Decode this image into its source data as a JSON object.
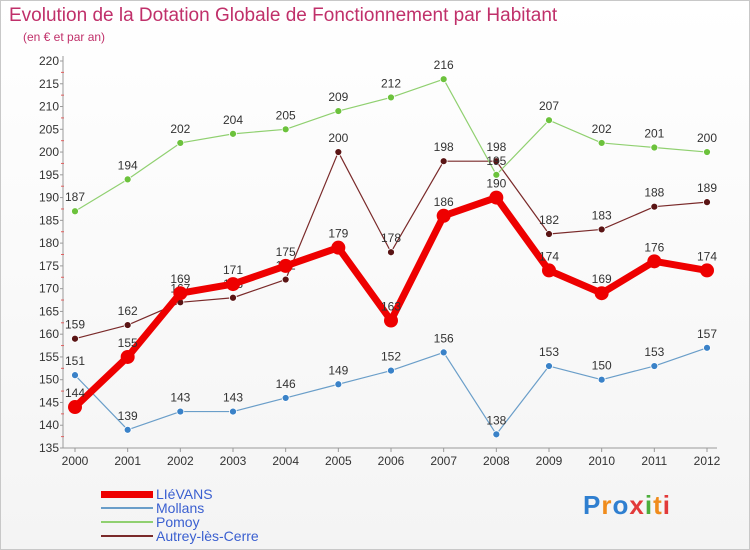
{
  "title": "Evolution de la Dotation Globale de Fonctionnement par Habitant",
  "subtitle": "(en € et par an)",
  "logo": {
    "text": "Proxiti",
    "colors": [
      "#2f7fd0",
      "#f08c1c",
      "#2f7fd0",
      "#e23a3a",
      "#4cae3c",
      "#f08c1c",
      "#e23a3a"
    ]
  },
  "chart_data": {
    "type": "line",
    "x": [
      "2000",
      "2001",
      "2002",
      "2003",
      "2004",
      "2005",
      "2006",
      "2007",
      "2008",
      "2009",
      "2010",
      "2011",
      "2012"
    ],
    "ylim": [
      135,
      220
    ],
    "yticks": [
      135,
      140,
      145,
      150,
      155,
      160,
      165,
      170,
      175,
      180,
      185,
      190,
      195,
      200,
      205,
      210,
      215,
      220
    ],
    "grid": false,
    "legend_position": "bottom-left",
    "series": [
      {
        "name": "Autrey-lès-Cerre",
        "color": "#7a2a2a",
        "marker": "#5a1414",
        "width": 1.2,
        "radius": 3.5,
        "values": [
          159,
          162,
          167,
          168,
          172,
          200,
          178,
          198,
          198,
          182,
          183,
          188,
          189
        ],
        "labels": [
          "159",
          "162",
          "167",
          "168",
          "172",
          "200",
          "178",
          "198",
          "198",
          "182",
          "183",
          "188",
          "189"
        ]
      },
      {
        "name": "Mollans",
        "color": "#6a9ec9",
        "marker": "#3a82c8",
        "width": 1.2,
        "radius": 3.5,
        "values": [
          151,
          139,
          143,
          143,
          146,
          149,
          152,
          156,
          138,
          153,
          150,
          153,
          157
        ],
        "labels": [
          "151",
          "139",
          "143",
          "143",
          "146",
          "149",
          "152",
          "156",
          "138",
          "153",
          "150",
          "153",
          "157"
        ]
      },
      {
        "name": "Pomoy",
        "color": "#90d070",
        "marker": "#6cc23c",
        "width": 1.2,
        "radius": 3.5,
        "values": [
          187,
          194,
          202,
          204,
          205,
          209,
          212,
          216,
          195,
          207,
          202,
          201,
          200
        ],
        "labels": [
          "187",
          "194",
          "202",
          "204",
          "205",
          "209",
          "212",
          "216",
          "195",
          "207",
          "202",
          "201",
          "200"
        ]
      },
      {
        "name": "LIéVANS",
        "color": "#ee0000",
        "marker": "#ee0000",
        "width": 7,
        "radius": 7,
        "values": [
          144,
          155,
          169,
          171,
          175,
          179,
          163,
          186,
          190,
          174,
          169,
          176,
          174
        ],
        "labels": [
          "144",
          "155",
          "169",
          "171",
          "175",
          "179",
          "163",
          "186",
          "190",
          "174",
          "169",
          "176",
          "174"
        ]
      }
    ]
  },
  "legend": [
    {
      "label": "LIéVANS",
      "color": "#ee0000",
      "thickness": 7
    },
    {
      "label": "Mollans",
      "color": "#6a9ec9",
      "thickness": 2
    },
    {
      "label": "Pomoy",
      "color": "#90d070",
      "thickness": 2
    },
    {
      "label": "Autrey-lès-Cerre",
      "color": "#7a2a2a",
      "thickness": 2
    }
  ]
}
